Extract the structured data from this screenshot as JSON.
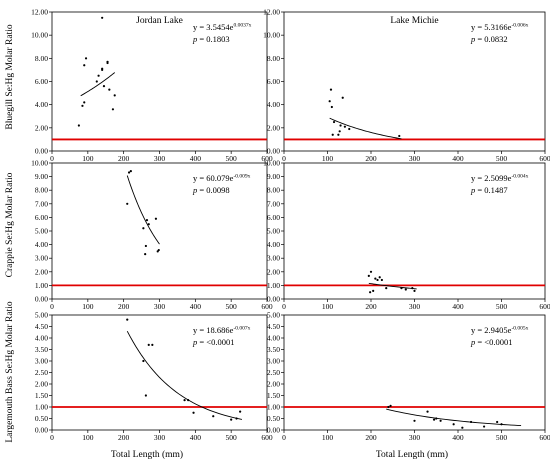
{
  "figure": {
    "xlabel": "Total Length (mm)",
    "xlim": [
      0,
      600
    ],
    "xticks": [
      "0",
      "100",
      "200",
      "300",
      "400",
      "500",
      "600"
    ],
    "threshold": 1.0,
    "threshold_color": "#e00000"
  },
  "columns": [
    {
      "title": "Jordan Lake"
    },
    {
      "title": "Lake Michie"
    }
  ],
  "rows": [
    {
      "ylabel": "Bluegill Se:Hg Molar Ratio",
      "ylim": [
        0,
        12
      ],
      "yticks": [
        "0.00",
        "2.00",
        "4.00",
        "6.00",
        "8.00",
        "10.00",
        "12.00"
      ]
    },
    {
      "ylabel": "Crappie Se:Hg Molar Ratio",
      "ylim": [
        0,
        10
      ],
      "yticks": [
        "0.00",
        "1.00",
        "2.00",
        "3.00",
        "4.00",
        "5.00",
        "6.00",
        "7.00",
        "8.00",
        "9.00",
        "10.00"
      ]
    },
    {
      "ylabel": "Largemouth Bass Se:Hg Molar Ratio",
      "ylim": [
        0,
        5
      ],
      "yticks": [
        "0.00",
        "0.50",
        "1.00",
        "1.50",
        "2.00",
        "2.50",
        "3.00",
        "3.50",
        "4.00",
        "4.50",
        "5.00"
      ]
    }
  ],
  "chart_data": [
    {
      "type": "scatter",
      "row": 0,
      "col": 0,
      "title": "Jordan Lake",
      "ylabel": "Bluegill Se:Hg Molar Ratio",
      "xlim": [
        0,
        600
      ],
      "ylim": [
        0,
        12
      ],
      "eq_coef": "y = 3.5454e",
      "eq_exp": "0.0037x",
      "p_label": "p",
      "p_value": " = 0.1803",
      "fit": {
        "a": 3.5454,
        "b": 0.0037,
        "x_range": [
          80,
          175
        ]
      },
      "points": [
        [
          75,
          2.2
        ],
        [
          85,
          3.9
        ],
        [
          90,
          4.2
        ],
        [
          90,
          7.4
        ],
        [
          95,
          8.0
        ],
        [
          125,
          6.0
        ],
        [
          130,
          6.5
        ],
        [
          140,
          7.0
        ],
        [
          140,
          7.1
        ],
        [
          140,
          11.5
        ],
        [
          145,
          5.6
        ],
        [
          155,
          7.6
        ],
        [
          155,
          7.7
        ],
        [
          160,
          5.3
        ],
        [
          170,
          3.6
        ],
        [
          175,
          4.8
        ]
      ]
    },
    {
      "type": "scatter",
      "row": 0,
      "col": 1,
      "title": "Lake Michie",
      "ylabel": "Bluegill Se:Hg Molar Ratio",
      "xlim": [
        0,
        600
      ],
      "ylim": [
        0,
        12
      ],
      "eq_coef": "y = 5.3166e",
      "eq_exp": "-0.006x",
      "p_label": "p",
      "p_value": " = 0.0832",
      "fit": {
        "a": 5.3166,
        "b": -0.006,
        "x_range": [
          105,
          270
        ]
      },
      "points": [
        [
          105,
          4.3
        ],
        [
          108,
          5.3
        ],
        [
          110,
          3.8
        ],
        [
          112,
          1.4
        ],
        [
          115,
          2.5
        ],
        [
          125,
          1.4
        ],
        [
          128,
          1.7
        ],
        [
          130,
          2.2
        ],
        [
          135,
          4.6
        ],
        [
          140,
          2.1
        ],
        [
          150,
          1.9
        ],
        [
          265,
          1.3
        ]
      ]
    },
    {
      "type": "scatter",
      "row": 1,
      "col": 0,
      "title": "Jordan Lake",
      "ylabel": "Crappie Se:Hg Molar Ratio",
      "xlim": [
        0,
        600
      ],
      "ylim": [
        0,
        10
      ],
      "eq_coef": "y = 60.079e",
      "eq_exp": "-0.009x",
      "p_label": "p",
      "p_value": " = 0.0098",
      "fit": {
        "a": 60.079,
        "b": -0.009,
        "x_range": [
          210,
          300
        ]
      },
      "points": [
        [
          210,
          7.0
        ],
        [
          215,
          9.3
        ],
        [
          220,
          9.4
        ],
        [
          255,
          5.2
        ],
        [
          260,
          3.3
        ],
        [
          262,
          3.9
        ],
        [
          265,
          5.8
        ],
        [
          270,
          5.5
        ],
        [
          290,
          5.9
        ],
        [
          295,
          3.5
        ],
        [
          298,
          3.6
        ]
      ]
    },
    {
      "type": "scatter",
      "row": 1,
      "col": 1,
      "title": "Lake Michie",
      "ylabel": "Crappie Se:Hg Molar Ratio",
      "xlim": [
        0,
        600
      ],
      "ylim": [
        0,
        10
      ],
      "eq_coef": "y = 2.5099e",
      "eq_exp": "-0.004x",
      "p_label": "p",
      "p_value": " = 0.1487",
      "fit": {
        "a": 2.5099,
        "b": -0.004,
        "x_range": [
          195,
          305
        ]
      },
      "points": [
        [
          195,
          1.7
        ],
        [
          198,
          0.5
        ],
        [
          200,
          2.0
        ],
        [
          205,
          0.6
        ],
        [
          210,
          1.5
        ],
        [
          215,
          1.4
        ],
        [
          220,
          1.6
        ],
        [
          225,
          1.4
        ],
        [
          235,
          0.8
        ],
        [
          270,
          0.8
        ],
        [
          280,
          0.7
        ],
        [
          295,
          0.8
        ],
        [
          300,
          0.6
        ]
      ]
    },
    {
      "type": "scatter",
      "row": 2,
      "col": 0,
      "title": "Jordan Lake",
      "ylabel": "Largemouth Bass Se:Hg Molar Ratio",
      "xlim": [
        0,
        600
      ],
      "ylim": [
        0,
        5
      ],
      "eq_coef": "y = 18.686e",
      "eq_exp": "-0.007x",
      "p_label": "p",
      "p_value": " = <0.0001",
      "fit": {
        "a": 18.686,
        "b": -0.007,
        "x_range": [
          210,
          530
        ]
      },
      "points": [
        [
          210,
          4.8
        ],
        [
          255,
          3.0
        ],
        [
          262,
          1.5
        ],
        [
          270,
          3.7
        ],
        [
          280,
          3.7
        ],
        [
          370,
          1.3
        ],
        [
          380,
          1.3
        ],
        [
          395,
          0.75
        ],
        [
          450,
          0.6
        ],
        [
          500,
          0.45
        ],
        [
          515,
          0.5
        ],
        [
          525,
          0.8
        ]
      ]
    },
    {
      "type": "scatter",
      "row": 2,
      "col": 1,
      "title": "Lake Michie",
      "ylabel": "Largemouth Bass Se:Hg Molar Ratio",
      "xlim": [
        0,
        600
      ],
      "ylim": [
        0,
        5
      ],
      "eq_coef": "y = 2.9405e",
      "eq_exp": "-0.005x",
      "p_label": "p",
      "p_value": " = <0.0001",
      "fit": {
        "a": 2.9405,
        "b": -0.005,
        "x_range": [
          235,
          545
        ]
      },
      "points": [
        [
          240,
          1.0
        ],
        [
          245,
          1.05
        ],
        [
          300,
          0.4
        ],
        [
          330,
          0.8
        ],
        [
          345,
          0.45
        ],
        [
          350,
          0.5
        ],
        [
          360,
          0.4
        ],
        [
          390,
          0.25
        ],
        [
          410,
          0.1
        ],
        [
          430,
          0.35
        ],
        [
          460,
          0.15
        ],
        [
          490,
          0.35
        ],
        [
          500,
          0.25
        ]
      ]
    }
  ]
}
